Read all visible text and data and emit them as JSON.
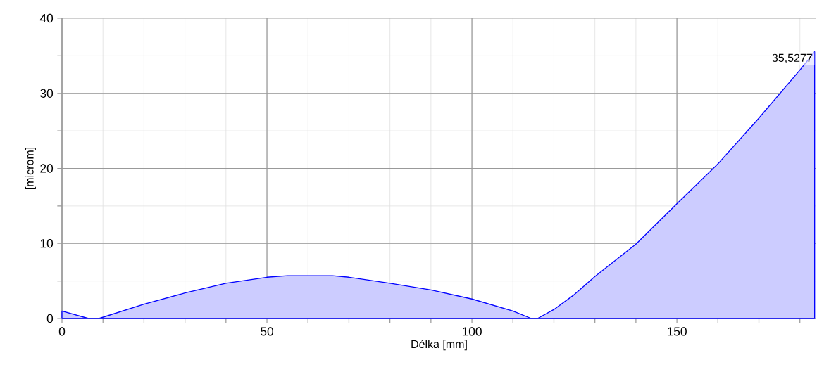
{
  "chart_data": {
    "type": "area",
    "xlabel": "Délka [mm]",
    "ylabel": "[microm]",
    "x": [
      0,
      6.5,
      9,
      20,
      30,
      40,
      50,
      55,
      60,
      66,
      70,
      80,
      90,
      100,
      110,
      114.5,
      116,
      120,
      125,
      130,
      140,
      150,
      160,
      170,
      180,
      183.6
    ],
    "series": [
      {
        "color": "#0000ff",
        "values": [
          1.0,
          0,
          0,
          1.9,
          3.4,
          4.7,
          5.5,
          5.7,
          5.7,
          5.7,
          5.5,
          4.7,
          3.8,
          2.6,
          1.0,
          0,
          0,
          1.2,
          3.2,
          5.6,
          9.9,
          15.3,
          20.6,
          26.7,
          33.1,
          35.5277
        ]
      }
    ],
    "xlim": [
      0,
      184
    ],
    "ylim": [
      0,
      40
    ],
    "xticks": [
      0,
      {
        "value": 10,
        "label": null
      },
      {
        "value": 20,
        "label": null
      },
      {
        "value": 30,
        "label": null
      },
      {
        "value": 40,
        "label": null
      },
      50,
      {
        "value": 60,
        "label": null
      },
      {
        "value": 70,
        "label": null
      },
      {
        "value": 80,
        "label": null
      },
      {
        "value": 90,
        "label": null
      },
      100,
      {
        "value": 110,
        "label": null
      },
      {
        "value": 120,
        "label": null
      },
      {
        "value": 130,
        "label": null
      },
      {
        "value": 140,
        "label": null
      },
      150,
      {
        "value": 160,
        "label": null
      },
      {
        "value": 170,
        "label": null
      },
      {
        "value": 180,
        "label": null
      }
    ],
    "yticks": [
      0,
      {
        "value": 5,
        "label": null
      },
      10,
      {
        "value": 15,
        "label": null
      },
      20,
      {
        "value": 25,
        "label": null
      },
      30,
      {
        "value": 35,
        "label": null
      },
      40
    ],
    "grid": true,
    "annotations": [
      {
        "text": "35,5277",
        "x": 183.6,
        "y": 35.5277
      }
    ]
  }
}
